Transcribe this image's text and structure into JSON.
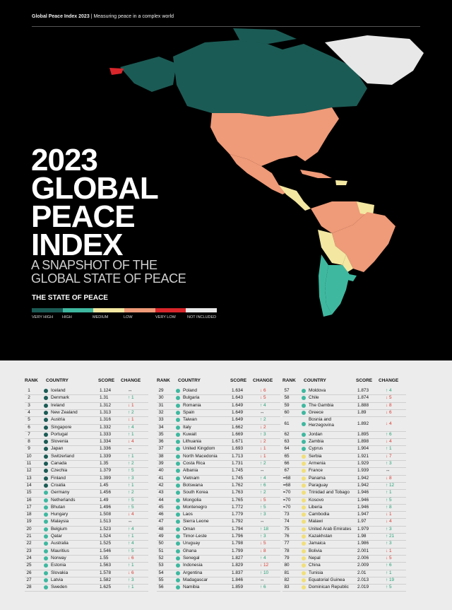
{
  "header": {
    "title": "Global Peace Index 2023",
    "sep": "|",
    "subtitle": "Measuring peace in a complex world"
  },
  "title_lines": [
    "2023",
    "GLOBAL",
    "PEACE",
    "INDEX"
  ],
  "subtitle_lines": [
    "A SNAPSHOT OF THE",
    "GLOBAL STATE OF PEACE"
  ],
  "state_of_peace": "THE STATE OF PEACE",
  "legend": [
    {
      "label": "VERY HIGH",
      "color": "#1b5b55"
    },
    {
      "label": "HIGH",
      "color": "#3fb8a0"
    },
    {
      "label": "MEDIUM",
      "color": "#f3e7a1"
    },
    {
      "label": "LOW",
      "color": "#ef9a78"
    },
    {
      "label": "VERY LOW",
      "color": "#d9262b"
    },
    {
      "label": "NOT INCLUDED",
      "color": "#e8e8e8"
    }
  ],
  "columns": {
    "rank": "RANK",
    "country": "COUNTRY",
    "score": "SCORE",
    "change": "CHANGE"
  },
  "table": [
    [
      {
        "rank": "1",
        "country": "Iceland",
        "score": "1.124",
        "dir": "flat",
        "delta": "",
        "band": "vh"
      },
      {
        "rank": "2",
        "country": "Denmark",
        "score": "1.31",
        "dir": "up",
        "delta": "1",
        "band": "vh"
      },
      {
        "rank": "3",
        "country": "Ireland",
        "score": "1.312",
        "dir": "down",
        "delta": "1",
        "band": "vh"
      },
      {
        "rank": "4",
        "country": "New Zealand",
        "score": "1.313",
        "dir": "up",
        "delta": "2",
        "band": "vh"
      },
      {
        "rank": "5",
        "country": "Austria",
        "score": "1.316",
        "dir": "down",
        "delta": "1",
        "band": "vh"
      },
      {
        "rank": "6",
        "country": "Singapore",
        "score": "1.332",
        "dir": "up",
        "delta": "4",
        "band": "vh"
      },
      {
        "rank": "7",
        "country": "Portugal",
        "score": "1.333",
        "dir": "up",
        "delta": "1",
        "band": "vh"
      },
      {
        "rank": "8",
        "country": "Slovenia",
        "score": "1.334",
        "dir": "down",
        "delta": "4",
        "band": "vh"
      },
      {
        "rank": "9",
        "country": "Japan",
        "score": "1.336",
        "dir": "flat",
        "delta": "",
        "band": "vh"
      },
      {
        "rank": "10",
        "country": "Switzerland",
        "score": "1.339",
        "dir": "up",
        "delta": "1",
        "band": "vh"
      },
      {
        "rank": "11",
        "country": "Canada",
        "score": "1.35",
        "dir": "up",
        "delta": "2",
        "band": "vh"
      },
      {
        "rank": "12",
        "country": "Czechia",
        "score": "1.379",
        "dir": "up",
        "delta": "5",
        "band": "vh"
      },
      {
        "rank": "13",
        "country": "Finland",
        "score": "1.399",
        "dir": "up",
        "delta": "3",
        "band": "vh"
      },
      {
        "rank": "14",
        "country": "Croatia",
        "score": "1.45",
        "dir": "up",
        "delta": "1",
        "band": "vh"
      },
      {
        "rank": "15",
        "country": "Germany",
        "score": "1.456",
        "dir": "up",
        "delta": "2",
        "band": "h"
      },
      {
        "rank": "16",
        "country": "Netherlands",
        "score": "1.49",
        "dir": "up",
        "delta": "5",
        "band": "h"
      },
      {
        "rank": "17",
        "country": "Bhutan",
        "score": "1.496",
        "dir": "up",
        "delta": "5",
        "band": "h"
      },
      {
        "rank": "18",
        "country": "Hungary",
        "score": "1.508",
        "dir": "down",
        "delta": "4",
        "band": "h"
      },
      {
        "rank": "19",
        "country": "Malaysia",
        "score": "1.513",
        "dir": "flat",
        "delta": "",
        "band": "h"
      },
      {
        "rank": "20",
        "country": "Belgium",
        "score": "1.523",
        "dir": "up",
        "delta": "4",
        "band": "h"
      },
      {
        "rank": "21",
        "country": "Qatar",
        "score": "1.524",
        "dir": "up",
        "delta": "1",
        "band": "h"
      },
      {
        "rank": "22",
        "country": "Australia",
        "score": "1.525",
        "dir": "up",
        "delta": "4",
        "band": "h"
      },
      {
        "rank": "23",
        "country": "Mauritius",
        "score": "1.546",
        "dir": "up",
        "delta": "5",
        "band": "h"
      },
      {
        "rank": "24",
        "country": "Norway",
        "score": "1.55",
        "dir": "down",
        "delta": "6",
        "band": "h"
      },
      {
        "rank": "25",
        "country": "Estonia",
        "score": "1.563",
        "dir": "up",
        "delta": "1",
        "band": "h"
      },
      {
        "rank": "26",
        "country": "Slovakia",
        "score": "1.578",
        "dir": "down",
        "delta": "6",
        "band": "h"
      },
      {
        "rank": "27",
        "country": "Latvia",
        "score": "1.582",
        "dir": "up",
        "delta": "3",
        "band": "h"
      },
      {
        "rank": "28",
        "country": "Sweden",
        "score": "1.625",
        "dir": "up",
        "delta": "1",
        "band": "h"
      }
    ],
    [
      {
        "rank": "29",
        "country": "Poland",
        "score": "1.634",
        "dir": "down",
        "delta": "6",
        "band": "h"
      },
      {
        "rank": "30",
        "country": "Bulgaria",
        "score": "1.643",
        "dir": "down",
        "delta": "5",
        "band": "h"
      },
      {
        "rank": "31",
        "country": "Romania",
        "score": "1.649",
        "dir": "up",
        "delta": "4",
        "band": "h"
      },
      {
        "rank": "32",
        "country": "Spain",
        "score": "1.649",
        "dir": "flat",
        "delta": "",
        "band": "h"
      },
      {
        "rank": "33",
        "country": "Taiwan",
        "score": "1.649",
        "dir": "up",
        "delta": "2",
        "band": "h"
      },
      {
        "rank": "34",
        "country": "Italy",
        "score": "1.662",
        "dir": "down",
        "delta": "2",
        "band": "h"
      },
      {
        "rank": "35",
        "country": "Kuwait",
        "score": "1.669",
        "dir": "up",
        "delta": "3",
        "band": "h"
      },
      {
        "rank": "36",
        "country": "Lithuania",
        "score": "1.671",
        "dir": "down",
        "delta": "2",
        "band": "h"
      },
      {
        "rank": "37",
        "country": "United Kingdom",
        "score": "1.693",
        "dir": "down",
        "delta": "1",
        "band": "h"
      },
      {
        "rank": "38",
        "country": "North Macedonia",
        "score": "1.713",
        "dir": "down",
        "delta": "1",
        "band": "h"
      },
      {
        "rank": "39",
        "country": "Costa Rica",
        "score": "1.731",
        "dir": "up",
        "delta": "2",
        "band": "h"
      },
      {
        "rank": "40",
        "country": "Albania",
        "score": "1.745",
        "dir": "flat",
        "delta": "",
        "band": "h"
      },
      {
        "rank": "41",
        "country": "Vietnam",
        "score": "1.745",
        "dir": "up",
        "delta": "4",
        "band": "h"
      },
      {
        "rank": "42",
        "country": "Botswana",
        "score": "1.762",
        "dir": "up",
        "delta": "6",
        "band": "h"
      },
      {
        "rank": "43",
        "country": "South Korea",
        "score": "1.763",
        "dir": "up",
        "delta": "2",
        "band": "h"
      },
      {
        "rank": "44",
        "country": "Mongolia",
        "score": "1.765",
        "dir": "down",
        "delta": "5",
        "band": "h"
      },
      {
        "rank": "45",
        "country": "Montenegro",
        "score": "1.772",
        "dir": "up",
        "delta": "5",
        "band": "h"
      },
      {
        "rank": "46",
        "country": "Laos",
        "score": "1.779",
        "dir": "up",
        "delta": "3",
        "band": "h"
      },
      {
        "rank": "47",
        "country": "Sierra Leone",
        "score": "1.792",
        "dir": "flat",
        "delta": "",
        "band": "h"
      },
      {
        "rank": "48",
        "country": "Oman",
        "score": "1.794",
        "dir": "up",
        "delta": "18",
        "band": "h"
      },
      {
        "rank": "49",
        "country": "Timor-Leste",
        "score": "1.796",
        "dir": "up",
        "delta": "3",
        "band": "h"
      },
      {
        "rank": "50",
        "country": "Uruguay",
        "score": "1.798",
        "dir": "down",
        "delta": "5",
        "band": "h"
      },
      {
        "rank": "51",
        "country": "Ghana",
        "score": "1.799",
        "dir": "down",
        "delta": "8",
        "band": "h"
      },
      {
        "rank": "52",
        "country": "Senegal",
        "score": "1.827",
        "dir": "up",
        "delta": "4",
        "band": "h"
      },
      {
        "rank": "53",
        "country": "Indonesia",
        "score": "1.829",
        "dir": "down",
        "delta": "12",
        "band": "h"
      },
      {
        "rank": "54",
        "country": "Argentina",
        "score": "1.837",
        "dir": "up",
        "delta": "10",
        "band": "h"
      },
      {
        "rank": "55",
        "country": "Madagascar",
        "score": "1.846",
        "dir": "flat",
        "delta": "",
        "band": "h"
      },
      {
        "rank": "56",
        "country": "Namibia",
        "score": "1.859",
        "dir": "up",
        "delta": "6",
        "band": "h"
      }
    ],
    [
      {
        "rank": "57",
        "country": "Moldova",
        "score": "1.873",
        "dir": "up",
        "delta": "4",
        "band": "h"
      },
      {
        "rank": "58",
        "country": "Chile",
        "score": "1.874",
        "dir": "down",
        "delta": "5",
        "band": "h"
      },
      {
        "rank": "59",
        "country": "The Gambia",
        "score": "1.888",
        "dir": "down",
        "delta": "8",
        "band": "h"
      },
      {
        "rank": "60",
        "country": "Greece",
        "score": "1.89",
        "dir": "down",
        "delta": "6",
        "band": "h"
      },
      {
        "rank": "61",
        "country": "Bosnia and Herzegovina",
        "score": "1.892",
        "dir": "down",
        "delta": "4",
        "band": "h",
        "two": true
      },
      {
        "rank": "62",
        "country": "Jordan",
        "score": "1.895",
        "dir": "up",
        "delta": "6",
        "band": "h"
      },
      {
        "rank": "63",
        "country": "Zambia",
        "score": "1.898",
        "dir": "down",
        "delta": "4",
        "band": "h"
      },
      {
        "rank": "64",
        "country": "Cyprus",
        "score": "1.904",
        "dir": "up",
        "delta": "1",
        "band": "h"
      },
      {
        "rank": "65",
        "country": "Serbia",
        "score": "1.921",
        "dir": "down",
        "delta": "7",
        "band": "m"
      },
      {
        "rank": "66",
        "country": "Armenia",
        "score": "1.929",
        "dir": "up",
        "delta": "3",
        "band": "m"
      },
      {
        "rank": "67",
        "country": "France",
        "score": "1.939",
        "dir": "flat",
        "delta": "",
        "band": "m"
      },
      {
        "rank": "=68",
        "country": "Panama",
        "score": "1.942",
        "dir": "down",
        "delta": "8",
        "band": "m"
      },
      {
        "rank": "=68",
        "country": "Paraguay",
        "score": "1.942",
        "dir": "up",
        "delta": "12",
        "band": "m"
      },
      {
        "rank": "=70",
        "country": "Trinidad and Tobago",
        "score": "1.946",
        "dir": "up",
        "delta": "1",
        "band": "m"
      },
      {
        "rank": "=70",
        "country": "Kosovo",
        "score": "1.946",
        "dir": "up",
        "delta": "5",
        "band": "m"
      },
      {
        "rank": "=70",
        "country": "Liberia",
        "score": "1.946",
        "dir": "up",
        "delta": "8",
        "band": "m"
      },
      {
        "rank": "73",
        "country": "Cambodia",
        "score": "1.947",
        "dir": "down",
        "delta": "1",
        "band": "m"
      },
      {
        "rank": "74",
        "country": "Malawi",
        "score": "1.97",
        "dir": "down",
        "delta": "4",
        "band": "m"
      },
      {
        "rank": "75",
        "country": "United Arab Emirates",
        "score": "1.979",
        "dir": "up",
        "delta": "3",
        "band": "m"
      },
      {
        "rank": "76",
        "country": "Kazakhstan",
        "score": "1.98",
        "dir": "up",
        "delta": "21",
        "band": "m"
      },
      {
        "rank": "77",
        "country": "Jamaica",
        "score": "1.986",
        "dir": "up",
        "delta": "3",
        "band": "m"
      },
      {
        "rank": "78",
        "country": "Bolivia",
        "score": "2.001",
        "dir": "down",
        "delta": "1",
        "band": "m"
      },
      {
        "rank": "79",
        "country": "Nepal",
        "score": "2.006",
        "dir": "down",
        "delta": "5",
        "band": "m"
      },
      {
        "rank": "80",
        "country": "China",
        "score": "2.009",
        "dir": "up",
        "delta": "6",
        "band": "m"
      },
      {
        "rank": "81",
        "country": "Tunisia",
        "score": "2.01",
        "dir": "up",
        "delta": "1",
        "band": "m"
      },
      {
        "rank": "82",
        "country": "Equatorial Guinea",
        "score": "2.013",
        "dir": "up",
        "delta": "19",
        "band": "m"
      },
      {
        "rank": "83",
        "country": "Dominican Republic",
        "score": "2.019",
        "dir": "up",
        "delta": "5",
        "band": "m"
      }
    ]
  ]
}
